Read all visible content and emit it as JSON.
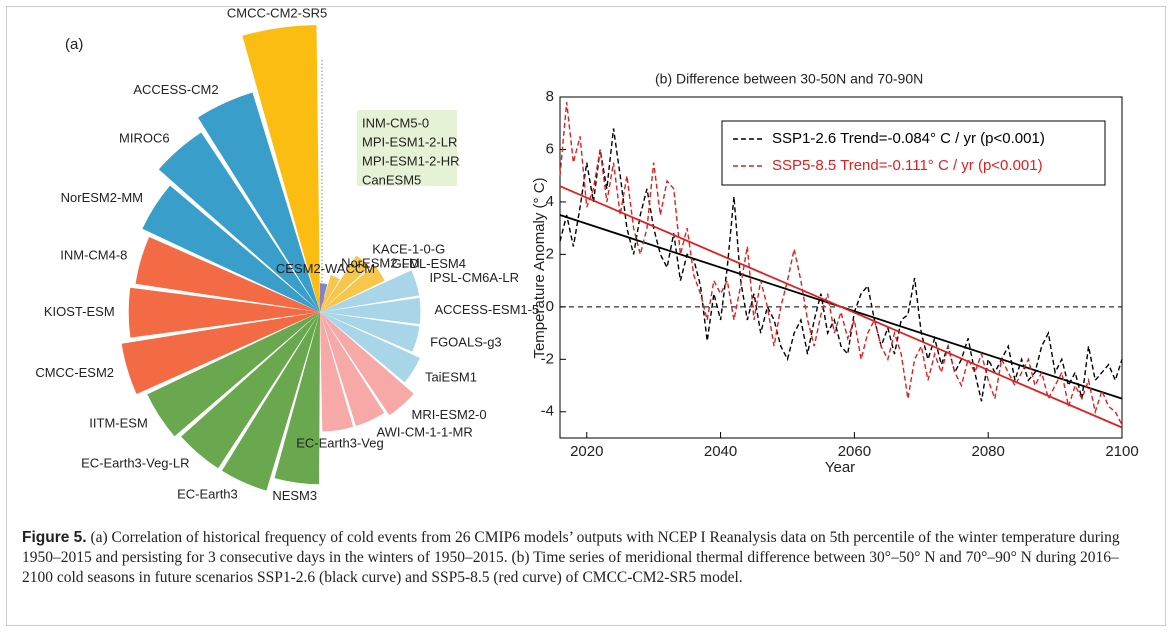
{
  "chart_data": [
    {
      "type": "radial_bar",
      "label": "(a)",
      "categories": [
        "CMCC-CM2-SR5",
        "ACCESS-CM2",
        "MIROC6",
        "NorESM2-MM",
        "INM-CM4-8",
        "KIOST-ESM",
        "CMCC-ESM2",
        "IITM-ESM",
        "EC-Earth3-Veg-LR",
        "EC-Earth3",
        "NESM3",
        "EC-Earth3-Veg",
        "AWI-CM-1-1-MR",
        "MRI-ESM2-0",
        "TaiESM1",
        "FGOALS-g3",
        "ACCESS-ESM1-5",
        "IPSL-CM6A-LR",
        "GFDL-ESM4",
        "KACE-1-0-G",
        "NorESM2-LM",
        "CESM2-WACCM",
        "INM-CM5-0",
        "MPI-ESM1-2-LR",
        "MPI-ESM1-2-HR",
        "CanESM5"
      ],
      "values": [
        0.6,
        0.48,
        0.45,
        0.41,
        0.39,
        0.4,
        0.42,
        0.4,
        0.39,
        0.39,
        0.36,
        0.25,
        0.25,
        0.26,
        0.23,
        0.21,
        0.21,
        0.21,
        0.15,
        0.14,
        0.08,
        0.06,
        0,
        0,
        0,
        0
      ],
      "colors": [
        "#fbbd12",
        "#3a9ecb",
        "#3a9ecb",
        "#3a9ecb",
        "#f26b45",
        "#f26b45",
        "#f26b45",
        "#6aa84f",
        "#6aa84f",
        "#6aa84f",
        "#6aa84f",
        "#f7a9a8",
        "#f7a9a8",
        "#f7a9a8",
        "#a9d5e8",
        "#a9d5e8",
        "#a9d5e8",
        "#a9d5e8",
        "#f7c64c",
        "#f7c64c",
        "#f7c64c",
        "#8585c4",
        "#8585c4",
        "#8585c4",
        "#8585c4",
        "#8585c4"
      ]
    },
    {
      "type": "line",
      "title": "(b) Difference between 30-50N and 70-90N",
      "x_label": "Year",
      "y_label": "Temperature Anomaly (° C)",
      "x": [
        2016,
        2017,
        2018,
        2019,
        2020,
        2021,
        2022,
        2023,
        2024,
        2025,
        2026,
        2027,
        2028,
        2029,
        2030,
        2031,
        2032,
        2033,
        2034,
        2035,
        2036,
        2037,
        2038,
        2039,
        2040,
        2041,
        2042,
        2043,
        2044,
        2045,
        2046,
        2047,
        2048,
        2049,
        2050,
        2051,
        2052,
        2053,
        2054,
        2055,
        2056,
        2057,
        2058,
        2059,
        2060,
        2061,
        2062,
        2063,
        2064,
        2065,
        2066,
        2067,
        2068,
        2069,
        2070,
        2071,
        2072,
        2073,
        2074,
        2075,
        2076,
        2077,
        2078,
        2079,
        2080,
        2081,
        2082,
        2083,
        2084,
        2085,
        2086,
        2087,
        2088,
        2089,
        2090,
        2091,
        2092,
        2093,
        2094,
        2095,
        2096,
        2097,
        2098,
        2099,
        2100
      ],
      "series": [
        {
          "name": "SSP1-2.6 Trend=-0.084° C / yr (p<0.001)",
          "color": "#000000",
          "values": [
            2.5,
            3.5,
            2.3,
            3.8,
            5.5,
            4.0,
            6.0,
            4.5,
            6.8,
            5.0,
            3.0,
            2.0,
            3.5,
            4.5,
            3.0,
            2.0,
            1.5,
            2.8,
            1.0,
            2.0,
            1.8,
            0.8,
            -1.3,
            0.5,
            -0.5,
            1.5,
            4.2,
            1.0,
            -0.5,
            0.5,
            -1.0,
            0.0,
            -0.5,
            -1.5,
            -2.0,
            -1.0,
            -0.5,
            -1.8,
            -0.5,
            0.5,
            -1.0,
            -0.5,
            -1.5,
            -1.8,
            -0.2,
            0.5,
            0.8,
            -0.5,
            -1.5,
            -0.8,
            -1.8,
            -0.5,
            -0.3,
            1.1,
            -1.0,
            -2.0,
            -1.2,
            -2.2,
            -1.5,
            -2.5,
            -2.0,
            -1.2,
            -2.5,
            -3.6,
            -2.0,
            -2.5,
            -2.0,
            -1.5,
            -2.8,
            -2.0,
            -2.8,
            -2.5,
            -1.5,
            -1.0,
            -2.5,
            -2.0,
            -3.0,
            -2.5,
            -3.5,
            -1.5,
            -2.8,
            -2.5,
            -2.2,
            -2.8,
            -2.0
          ],
          "trend": [
            3.5,
            -3.5
          ]
        },
        {
          "name": "SSP5-8.5 Trend=-0.111° C / yr (p<0.001)",
          "color": "#e02020",
          "values": [
            5.0,
            7.8,
            5.5,
            6.5,
            3.8,
            4.5,
            6.0,
            4.0,
            5.5,
            3.5,
            5.0,
            3.0,
            2.0,
            3.0,
            5.5,
            3.5,
            4.8,
            4.5,
            2.0,
            3.0,
            1.2,
            0.5,
            -0.5,
            1.0,
            0.5,
            1.0,
            -0.5,
            0.8,
            2.3,
            -0.5,
            1.0,
            0.0,
            -1.5,
            0.0,
            1.0,
            2.2,
            1.0,
            -0.5,
            -1.5,
            -0.3,
            0.5,
            -1.0,
            -0.2,
            -1.2,
            -0.5,
            -2.0,
            -1.0,
            -0.5,
            -1.5,
            -2.0,
            -1.0,
            -1.8,
            -3.5,
            -2.0,
            -1.5,
            -2.8,
            -1.8,
            -2.5,
            -1.5,
            -2.5,
            -3.0,
            -2.0,
            -2.5,
            -1.8,
            -2.8,
            -3.5,
            -2.0,
            -2.5,
            -3.0,
            -2.5,
            -2.0,
            -3.0,
            -2.5,
            -3.5,
            -3.0,
            -2.5,
            -3.8,
            -3.0,
            -3.5,
            -2.8,
            -4.0,
            -3.2,
            -3.8,
            -4.0,
            -4.5
          ],
          "trend": [
            4.6,
            -4.6
          ]
        }
      ],
      "xlim": [
        2016,
        2100
      ],
      "xticks": [
        2020,
        2040,
        2060,
        2080,
        2100
      ],
      "ylim": [
        -5,
        8
      ],
      "yticks": [
        -4,
        -2,
        0,
        2,
        4,
        6,
        8
      ],
      "zero_line": true
    }
  ],
  "caption": {
    "label": "Figure 5.",
    "text": " (a) Correlation of historical frequency of cold events from 26 CMIP6 models’ outputs with NCEP I Reanalysis data on 5th percentile of the winter temperature during 1950–2015 and persisting for 3 consecutive days in the winters of 1950–2015. (b) Time series of meridional thermal difference between 30°–50° N and 70°–90° N during 2016–2100 cold seasons in future scenarios SSP1-2.6 (black curve) and SSP5-8.5 (red curve) of CMCC-CM2-SR5 model."
  }
}
